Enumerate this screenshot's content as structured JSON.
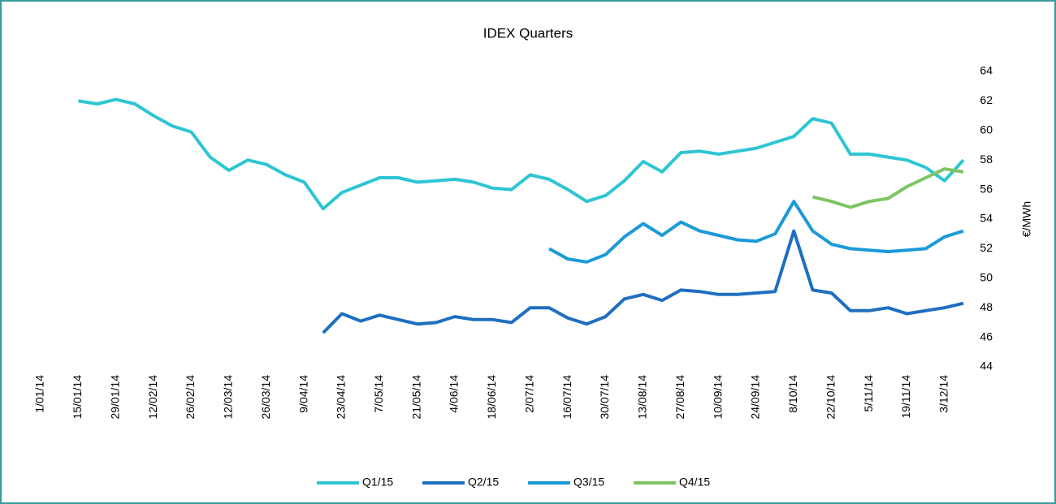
{
  "chart_data": {
    "type": "line",
    "title": "IDEX Quarters",
    "y_label": "€/MWh",
    "x": [
      "15/01/14",
      "22/01/14",
      "29/01/14",
      "5/02/14",
      "12/02/14",
      "19/02/14",
      "26/02/14",
      "5/03/14",
      "12/03/14",
      "19/03/14",
      "26/03/14",
      "2/04/14",
      "9/04/14",
      "16/04/14",
      "23/04/14",
      "30/04/14",
      "7/05/14",
      "14/05/14",
      "21/05/14",
      "28/05/14",
      "4/06/14",
      "11/06/14",
      "18/06/14",
      "25/06/14",
      "2/07/14",
      "9/07/14",
      "16/07/14",
      "23/07/14",
      "30/07/14",
      "6/08/14",
      "13/08/14",
      "20/08/14",
      "27/08/14",
      "3/09/14",
      "10/09/14",
      "17/09/14",
      "24/09/14",
      "1/10/14",
      "8/10/14",
      "15/10/14",
      "22/10/14",
      "29/10/14",
      "5/11/14",
      "12/11/14",
      "19/11/14",
      "26/11/14",
      "3/12/14",
      "10/12/14"
    ],
    "series": [
      {
        "name": "Q1/15",
        "color": "#2ec5d3",
        "values": [
          62.0,
          61.8,
          62.1,
          61.8,
          61.0,
          60.3,
          59.9,
          58.2,
          57.3,
          58.0,
          57.7,
          57.0,
          56.5,
          54.7,
          55.8,
          56.3,
          56.8,
          56.8,
          56.5,
          56.6,
          56.7,
          56.5,
          56.1,
          56.0,
          57.0,
          56.7,
          56.0,
          55.2,
          55.6,
          56.6,
          57.9,
          57.2,
          58.5,
          58.6,
          58.4,
          58.6,
          58.8,
          59.2,
          59.6,
          60.8,
          60.5,
          58.4,
          58.4,
          58.2,
          58.0,
          57.5,
          56.6,
          58.0
        ]
      },
      {
        "name": "Q2/15",
        "color": "#1f6fc0",
        "values": [
          null,
          null,
          null,
          null,
          null,
          null,
          null,
          null,
          null,
          null,
          null,
          null,
          null,
          46.3,
          47.6,
          47.1,
          47.5,
          47.2,
          46.9,
          47.0,
          47.4,
          47.2,
          47.2,
          47.0,
          48.0,
          48.0,
          47.3,
          46.9,
          47.4,
          48.6,
          48.9,
          48.5,
          49.2,
          49.1,
          48.9,
          48.9,
          49.0,
          49.1,
          53.2,
          49.2,
          49.0,
          47.8,
          47.8,
          48.0,
          47.6,
          47.8,
          48.0,
          48.3
        ]
      },
      {
        "name": "Q3/15",
        "color": "#1b9ad8",
        "values": [
          null,
          null,
          null,
          null,
          null,
          null,
          null,
          null,
          null,
          null,
          null,
          null,
          null,
          null,
          null,
          null,
          null,
          null,
          null,
          null,
          null,
          null,
          null,
          null,
          null,
          52.0,
          51.3,
          51.1,
          51.6,
          52.8,
          53.7,
          52.9,
          53.8,
          53.2,
          52.9,
          52.6,
          52.5,
          53.0,
          55.2,
          53.2,
          52.3,
          52.0,
          51.9,
          51.8,
          51.9,
          52.0,
          52.8,
          53.2
        ]
      },
      {
        "name": "Q4/15",
        "color": "#7ec463",
        "values": [
          null,
          null,
          null,
          null,
          null,
          null,
          null,
          null,
          null,
          null,
          null,
          null,
          null,
          null,
          null,
          null,
          null,
          null,
          null,
          null,
          null,
          null,
          null,
          null,
          null,
          null,
          null,
          null,
          null,
          null,
          null,
          null,
          null,
          null,
          null,
          null,
          null,
          null,
          null,
          55.5,
          55.2,
          54.8,
          55.2,
          55.4,
          56.2,
          56.8,
          57.4,
          57.2
        ]
      }
    ],
    "xlim": [
      "1/01/14",
      "10/12/14"
    ],
    "xticks": [
      "1/01/14",
      "15/01/14",
      "29/01/14",
      "12/02/14",
      "26/02/14",
      "12/03/14",
      "26/03/14",
      "9/04/14",
      "23/04/14",
      "7/05/14",
      "21/05/14",
      "4/06/14",
      "18/06/14",
      "2/07/14",
      "16/07/14",
      "30/07/14",
      "13/08/14",
      "27/08/14",
      "10/09/14",
      "24/09/14",
      "8/10/14",
      "22/10/14",
      "5/11/14",
      "19/11/14",
      "3/12/14"
    ],
    "ylim": [
      44,
      64
    ],
    "yticks": [
      44,
      46,
      48,
      50,
      52,
      54,
      56,
      58,
      60,
      62,
      64
    ],
    "legend": "bottom"
  }
}
